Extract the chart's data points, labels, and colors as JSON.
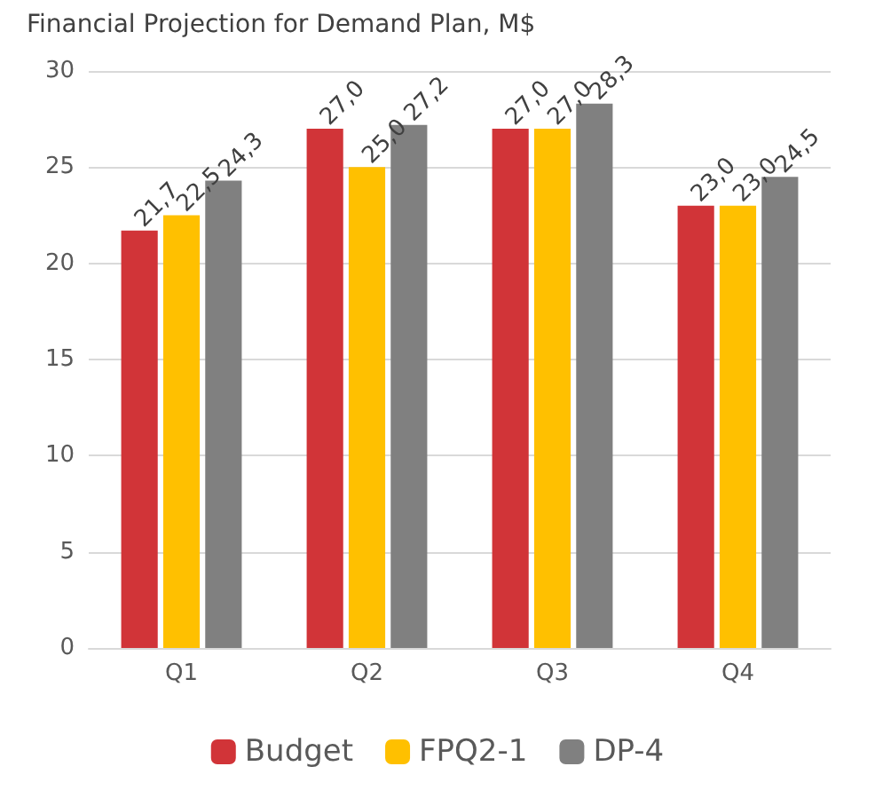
{
  "chart_data": {
    "type": "bar",
    "title": "Financial Projection for Demand Plan, M$",
    "categories": [
      "Q1",
      "Q2",
      "Q3",
      "Q4"
    ],
    "series": [
      {
        "name": "Budget",
        "color": "#d13438",
        "values": [
          21.7,
          27.0,
          27.0,
          23.0
        ],
        "value_labels": [
          "21,7",
          "27,0",
          "27,0",
          "23,0"
        ]
      },
      {
        "name": "FPQ2-1",
        "color": "#ffc000",
        "values": [
          22.5,
          25.0,
          27.0,
          23.0
        ],
        "value_labels": [
          "22,5",
          "25,0",
          "27,0",
          "23,0"
        ]
      },
      {
        "name": "DP-4",
        "color": "#808080",
        "values": [
          24.3,
          27.2,
          28.3,
          24.5
        ],
        "value_labels": [
          "24,3",
          "27,2",
          "28,3",
          "24,5"
        ]
      }
    ],
    "ylim": [
      0,
      30
    ],
    "yticks": [
      0,
      5,
      10,
      15,
      20,
      25,
      30
    ],
    "grid": "y",
    "legend": "bottom"
  }
}
